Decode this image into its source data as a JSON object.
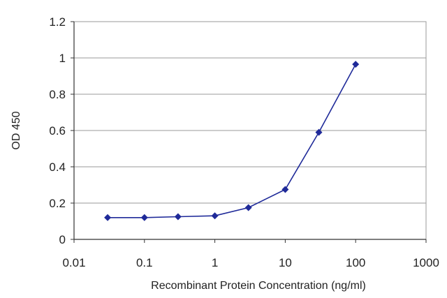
{
  "chart_data": {
    "type": "line",
    "xscale": "log",
    "xlabel": "Recombinant Protein Concentration (ng/ml)",
    "ylabel": "OD 450",
    "xlim": [
      0.01,
      1000
    ],
    "ylim": [
      0,
      1.2
    ],
    "x_ticks": [
      "0.01",
      "0.1",
      "1",
      "10",
      "100",
      "1000"
    ],
    "y_ticks": [
      "0",
      "0.2",
      "0.4",
      "0.6",
      "0.8",
      "1",
      "1.2"
    ],
    "grid": "horizontal",
    "series": [
      {
        "x": [
          0.03,
          0.1,
          0.3,
          1,
          3,
          10,
          30,
          100
        ],
        "y": [
          0.12,
          0.12,
          0.125,
          0.13,
          0.175,
          0.275,
          0.59,
          0.965
        ],
        "color": "#1f2a99",
        "marker": "diamond"
      }
    ]
  }
}
